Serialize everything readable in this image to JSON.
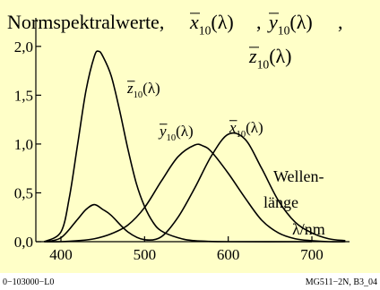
{
  "chart_data": {
    "type": "line",
    "title": {
      "text": "Normspektralwerte,",
      "xbar": "x",
      "ybar": "y",
      "zbar": "z",
      "subscript": "10",
      "arg": "(λ)",
      "sep": ","
    },
    "xlim": [
      370,
      745
    ],
    "ylim": [
      0,
      2.2
    ],
    "xticks": [
      {
        "value": 400,
        "label": "400"
      },
      {
        "value": 500,
        "label": "500"
      },
      {
        "value": 600,
        "label": "600"
      },
      {
        "value": 700,
        "label": "700"
      }
    ],
    "yticks": [
      {
        "value": 0,
        "label": "0,0"
      },
      {
        "value": 0.5,
        "label": "0,5"
      },
      {
        "value": 1.0,
        "label": "1,0"
      },
      {
        "value": 1.5,
        "label": "1,5"
      },
      {
        "value": 2.0,
        "label": "2,0"
      }
    ],
    "series": [
      {
        "name": "z10",
        "x": [
          380,
          400,
          410,
          420,
          430,
          440,
          445,
          450,
          460,
          470,
          480,
          490,
          500,
          510,
          520,
          540,
          560,
          600,
          700
        ],
        "y": [
          0.0,
          0.1,
          0.45,
          1.0,
          1.55,
          1.9,
          1.95,
          1.9,
          1.7,
          1.35,
          0.95,
          0.6,
          0.36,
          0.2,
          0.11,
          0.04,
          0.01,
          0.0,
          0.0
        ]
      },
      {
        "name": "y10",
        "x": [
          380,
          400,
          420,
          440,
          460,
          480,
          500,
          520,
          540,
          560,
          570,
          580,
          600,
          620,
          640,
          660,
          680,
          700,
          720,
          740
        ],
        "y": [
          0.0,
          0.0,
          0.01,
          0.03,
          0.08,
          0.17,
          0.35,
          0.62,
          0.87,
          0.99,
          0.98,
          0.92,
          0.7,
          0.45,
          0.22,
          0.09,
          0.03,
          0.01,
          0.0,
          0.0
        ]
      },
      {
        "name": "x10",
        "x": [
          380,
          400,
          420,
          430,
          440,
          450,
          460,
          480,
          500,
          520,
          540,
          560,
          580,
          600,
          620,
          640,
          660,
          680,
          700,
          720,
          740
        ],
        "y": [
          0.0,
          0.04,
          0.23,
          0.33,
          0.38,
          0.33,
          0.27,
          0.1,
          0.02,
          0.05,
          0.25,
          0.55,
          0.88,
          1.1,
          1.05,
          0.75,
          0.42,
          0.2,
          0.09,
          0.03,
          0.01
        ]
      }
    ],
    "curve_labels": {
      "z": {
        "bar": "z",
        "sub": "10",
        "arg": "(λ)"
      },
      "y": {
        "bar": "y",
        "sub": "10",
        "arg": "(λ)"
      },
      "x": {
        "bar": "x",
        "sub": "10",
        "arg": "(λ)"
      }
    },
    "axis_note": [
      "Wellen-",
      "länge",
      "λ/nm"
    ],
    "footer_left": "0−103000−L0",
    "footer_right": "MG511−2N, B3_04",
    "colors": {
      "background": "#ffffc8",
      "line": "#000000",
      "page": "#ffffff"
    }
  }
}
